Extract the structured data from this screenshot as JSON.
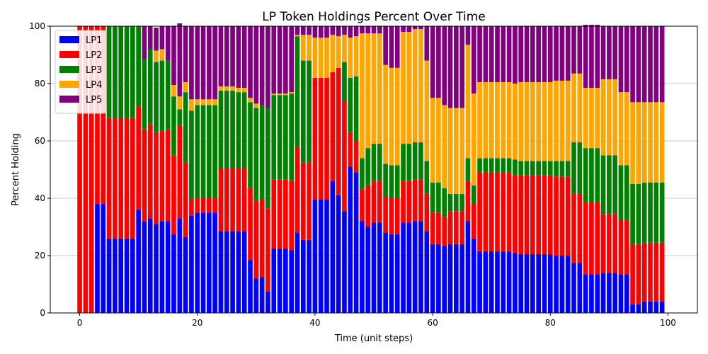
{
  "chart_data": {
    "type": "bar",
    "stacked": true,
    "title": "LP Token Holdings Percent Over Time",
    "xlabel": "Time (unit steps)",
    "ylabel": "Percent Holding",
    "xlim": [
      -5,
      105
    ],
    "ylim": [
      0,
      100
    ],
    "xticks": [
      0,
      20,
      40,
      60,
      80,
      100
    ],
    "yticks": [
      0,
      20,
      40,
      60,
      80,
      100
    ],
    "grid": "horizontal",
    "legend_position": "top-left",
    "series": [
      {
        "name": "LP1",
        "color": "#0000ff",
        "values": [
          0,
          0,
          0,
          38,
          38,
          26,
          26,
          26,
          26,
          26,
          36,
          32,
          33,
          31,
          32,
          32,
          27.5,
          33,
          26.5,
          34,
          35,
          35,
          35,
          35,
          28.5,
          28.5,
          28.5,
          28.5,
          28.5,
          18.5,
          12,
          12.5,
          7.5,
          22.5,
          22.5,
          22.5,
          22,
          28,
          25.5,
          25.5,
          39.5,
          39.5,
          39.5,
          46,
          41,
          35.5,
          51,
          49,
          32,
          30,
          31.5,
          31.5,
          28,
          27.5,
          27.5,
          31.5,
          31.5,
          32,
          32,
          28.5,
          24,
          24,
          23.5,
          24,
          24,
          24,
          32,
          26,
          21.5,
          21.5,
          21.5,
          21.5,
          21.5,
          21.5,
          21,
          20.5,
          20.5,
          20.5,
          20.5,
          20.5,
          20.5,
          20,
          20,
          20,
          17.5,
          17.5,
          13.5,
          13.5,
          13.5,
          14,
          14,
          14,
          13.5,
          13.5,
          3,
          3,
          4,
          4,
          4,
          4
        ]
      },
      {
        "name": "LP2",
        "color": "#ff0000",
        "values": [
          100,
          100,
          100,
          62,
          62,
          42,
          42,
          42,
          42,
          42,
          36,
          32,
          33,
          32,
          31.5,
          32,
          27.5,
          32.5,
          26,
          5.5,
          5,
          5,
          5,
          5,
          22,
          22,
          22,
          22,
          22,
          25,
          27,
          27,
          29,
          24,
          24,
          24,
          24,
          30,
          27,
          27,
          42.5,
          42.5,
          42.5,
          38,
          44.5,
          38.5,
          12,
          11,
          11,
          14.5,
          14.5,
          14.5,
          12.5,
          12.5,
          12.5,
          14.5,
          14.5,
          14.5,
          14.5,
          13,
          11,
          11,
          10,
          11.5,
          11.5,
          11.5,
          14,
          12,
          27.5,
          27.5,
          27.5,
          27.5,
          27.5,
          27.5,
          27,
          27.5,
          27.5,
          27.5,
          27.5,
          27.5,
          27.5,
          27.5,
          27.5,
          27.5,
          24,
          24,
          25,
          25,
          25,
          20.5,
          20.5,
          20.5,
          19,
          19,
          21,
          21,
          20.5,
          20.5,
          20.5,
          20.5
        ]
      },
      {
        "name": "LP3",
        "color": "#008000",
        "values": [
          0,
          0,
          0,
          0,
          0,
          32,
          32,
          32,
          32,
          32,
          28,
          24.5,
          26,
          24.5,
          24.5,
          24,
          20.5,
          5.5,
          24.5,
          31,
          32.5,
          32.5,
          32.5,
          32.5,
          27,
          27,
          27,
          26.5,
          26.5,
          30,
          32.5,
          33,
          35,
          29.5,
          29.5,
          29.5,
          30.5,
          38.5,
          35.5,
          35.5,
          0,
          0,
          0,
          0,
          0,
          13.5,
          19,
          22.5,
          11,
          13,
          13,
          13,
          11.5,
          11.5,
          11.5,
          13,
          13,
          13,
          13,
          11.5,
          10.5,
          10.5,
          10,
          6,
          6,
          6,
          8,
          6.5,
          5,
          5,
          5,
          5,
          5,
          5,
          5.5,
          5,
          5,
          5,
          5,
          5,
          5,
          5.5,
          5.5,
          5.5,
          18,
          18,
          19,
          19,
          19,
          20.5,
          20.5,
          20.5,
          19,
          19,
          21,
          21,
          21,
          21,
          21,
          21
        ]
      },
      {
        "name": "LP4",
        "color": "#ffa500",
        "values": [
          0,
          0,
          0,
          0,
          0,
          0,
          0,
          0,
          0,
          0,
          0,
          0,
          0,
          4,
          4,
          0,
          4,
          4.5,
          3.5,
          4,
          2,
          2,
          2,
          2,
          1.5,
          1.5,
          1.5,
          1.5,
          1.5,
          1.5,
          1.5,
          0,
          0,
          0.5,
          0.5,
          0.5,
          0.5,
          0.5,
          9,
          9,
          14,
          14,
          14,
          13,
          11,
          9.5,
          14,
          14,
          43.5,
          40,
          38.5,
          38.5,
          34.5,
          34,
          34,
          39,
          39,
          39.5,
          39.5,
          35,
          29.5,
          29.5,
          29,
          30,
          30,
          30,
          39.5,
          32,
          26.5,
          26.5,
          26.5,
          26.5,
          26.5,
          26.5,
          26.5,
          27.5,
          27.5,
          27.5,
          27.5,
          27.5,
          27.5,
          28,
          28,
          28,
          24,
          24,
          21,
          21,
          21,
          26.5,
          26.5,
          26.5,
          25.5,
          25.5,
          28.5,
          28.5,
          28,
          28,
          28,
          28
        ]
      },
      {
        "name": "LP5",
        "color": "#800080",
        "values": [
          0,
          0,
          0,
          0,
          0,
          0,
          0,
          0,
          0,
          0,
          0,
          11.5,
          8,
          8,
          8,
          12,
          20.5,
          25.5,
          19.5,
          25.5,
          25.5,
          25.5,
          25.5,
          25.5,
          21,
          21,
          21,
          21.5,
          21.5,
          25,
          27,
          27.5,
          28.5,
          23.5,
          23.5,
          23.5,
          23,
          3,
          3,
          3,
          4,
          4,
          4,
          3,
          3.5,
          3,
          4,
          3.5,
          2.5,
          2.5,
          2.5,
          2.5,
          13.5,
          14.5,
          14.5,
          2,
          2,
          1,
          1,
          12,
          25,
          25,
          27.5,
          28.5,
          28.5,
          28.5,
          6.5,
          23.5,
          19.5,
          19.5,
          19.5,
          19.5,
          19.5,
          19.5,
          20,
          19.5,
          19.5,
          19.5,
          19.5,
          19.5,
          19.5,
          19,
          19,
          19,
          16.5,
          16.5,
          22,
          22,
          22,
          18.5,
          18.5,
          18.5,
          23,
          23,
          26.5,
          26.5,
          26.5,
          26.5,
          26.5,
          26.5
        ]
      }
    ]
  }
}
